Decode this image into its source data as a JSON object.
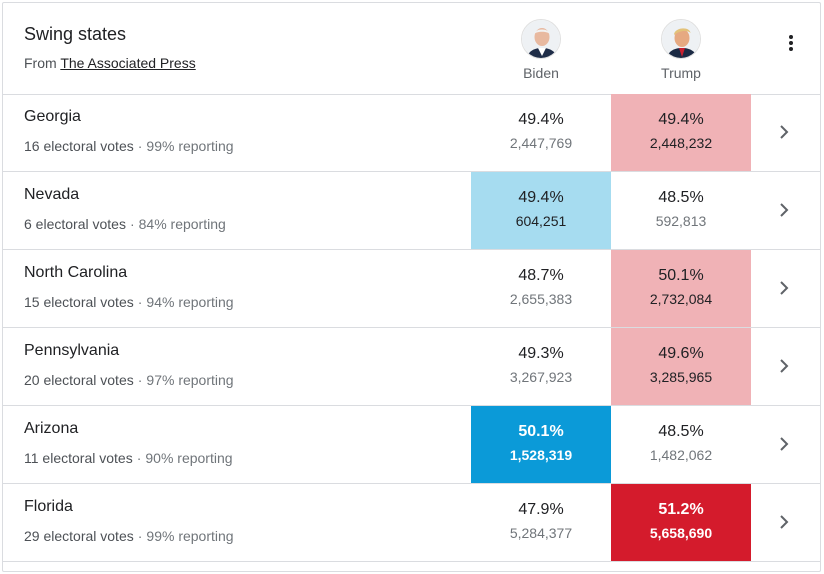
{
  "header": {
    "title": "Swing states",
    "source_prefix": "From",
    "source_link": "The Associated Press"
  },
  "candidates": [
    {
      "name": "Biden",
      "icon": "biden-avatar-icon"
    },
    {
      "name": "Trump",
      "icon": "trump-avatar-icon"
    }
  ],
  "colors": {
    "light_red": "#f0b2b6",
    "light_blue": "#a6dcf0",
    "strong_blue": "#0b9ad8",
    "strong_red": "#d41b2c"
  },
  "rows": [
    {
      "state": "Georgia",
      "electoral": "16 electoral votes",
      "reporting": "99% reporting",
      "biden_pct": "49.4%",
      "biden_votes": "2,447,769",
      "trump_pct": "49.4%",
      "trump_votes": "2,448,232",
      "highlight": "trump-light"
    },
    {
      "state": "Nevada",
      "electoral": "6 electoral votes",
      "reporting": "84% reporting",
      "biden_pct": "49.4%",
      "biden_votes": "604,251",
      "trump_pct": "48.5%",
      "trump_votes": "592,813",
      "highlight": "biden-light"
    },
    {
      "state": "North Carolina",
      "electoral": "15 electoral votes",
      "reporting": "94% reporting",
      "biden_pct": "48.7%",
      "biden_votes": "2,655,383",
      "trump_pct": "50.1%",
      "trump_votes": "2,732,084",
      "highlight": "trump-light"
    },
    {
      "state": "Pennsylvania",
      "electoral": "20 electoral votes",
      "reporting": "97% reporting",
      "biden_pct": "49.3%",
      "biden_votes": "3,267,923",
      "trump_pct": "49.6%",
      "trump_votes": "3,285,965",
      "highlight": "trump-light"
    },
    {
      "state": "Arizona",
      "electoral": "11 electoral votes",
      "reporting": "90% reporting",
      "biden_pct": "50.1%",
      "biden_votes": "1,528,319",
      "trump_pct": "48.5%",
      "trump_votes": "1,482,062",
      "highlight": "biden-strong"
    },
    {
      "state": "Florida",
      "electoral": "29 electoral votes",
      "reporting": "99% reporting",
      "biden_pct": "47.9%",
      "biden_votes": "5,284,377",
      "trump_pct": "51.2%",
      "trump_votes": "5,658,690",
      "highlight": "trump-strong"
    }
  ]
}
